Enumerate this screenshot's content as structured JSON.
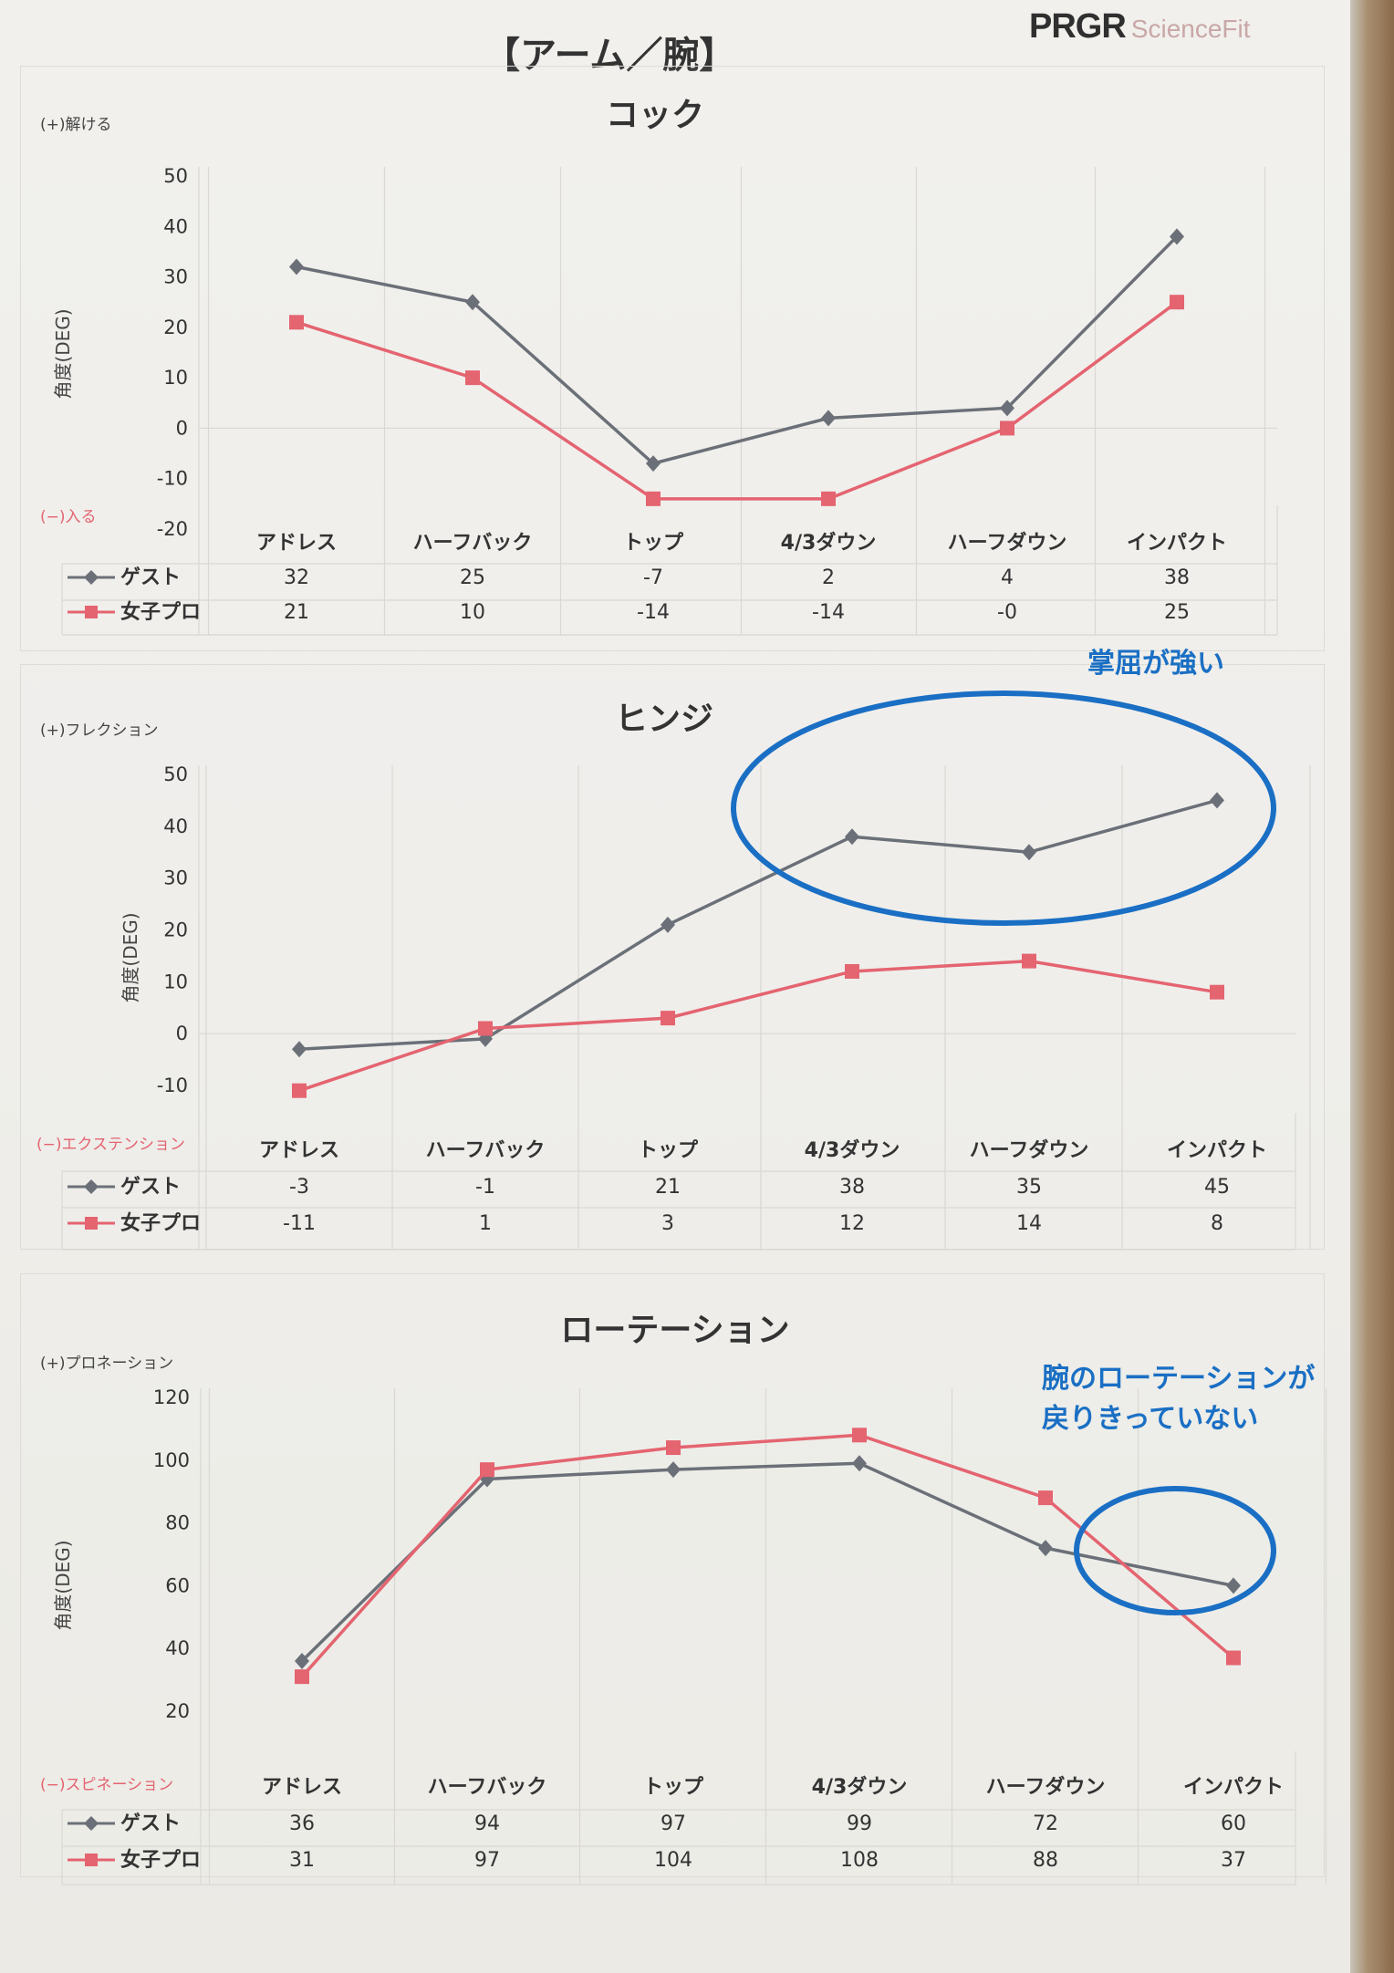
{
  "page_title": "【アーム／腕】",
  "brand": {
    "name": "PRGR",
    "sub": "ScienceFit"
  },
  "colors": {
    "guest": "#6b7078",
    "pro": "#e46470",
    "annotation": "#1a6fc4",
    "grid": "#d9d8d3"
  },
  "chart_data": [
    {
      "type": "line",
      "title": "コック",
      "ylabel": "角度(DEG)",
      "pos_label": "(+)解ける",
      "neg_label": "(−)入る",
      "ylim": [
        -20,
        50
      ],
      "yticks": [
        50,
        40,
        30,
        20,
        10,
        0,
        -10,
        -20
      ],
      "categories": [
        "アドレス",
        "ハーフバック",
        "トップ",
        "4/3ダウン",
        "ハーフダウン",
        "インパクト"
      ],
      "series": [
        {
          "name": "ゲスト",
          "marker": "diamond",
          "values": [
            32,
            25,
            -7,
            2,
            4,
            38
          ]
        },
        {
          "name": "女子プロ",
          "marker": "square",
          "values": [
            21,
            10,
            -14,
            -14,
            0,
            25
          ]
        }
      ],
      "labels": {
        "ゲスト": [
          "32",
          "25",
          "-7",
          "2",
          "4",
          "38"
        ],
        "女子プロ": [
          "21",
          "10",
          "-14",
          "-14",
          "-0",
          "25"
        ]
      }
    },
    {
      "type": "line",
      "title": "ヒンジ",
      "ylabel": "角度(DEG)",
      "pos_label": "(+)フレクション",
      "neg_label": "(−)エクステンション",
      "ylim": [
        -10,
        50
      ],
      "yticks": [
        50,
        40,
        30,
        20,
        10,
        0,
        -10
      ],
      "categories": [
        "アドレス",
        "ハーフバック",
        "トップ",
        "4/3ダウン",
        "ハーフダウン",
        "インパクト"
      ],
      "series": [
        {
          "name": "ゲスト",
          "marker": "diamond",
          "values": [
            -3,
            -1,
            21,
            38,
            35,
            45
          ]
        },
        {
          "name": "女子プロ",
          "marker": "square",
          "values": [
            -11,
            1,
            3,
            12,
            14,
            8
          ]
        }
      ],
      "labels": {
        "ゲスト": [
          "-3",
          "-1",
          "21",
          "38",
          "35",
          "45"
        ],
        "女子プロ": [
          "-11",
          "1",
          "3",
          "12",
          "14",
          "8"
        ]
      }
    },
    {
      "type": "line",
      "title": "ローテーション",
      "ylabel": "角度(DEG)",
      "pos_label": "(+)プロネーション",
      "neg_label": "(−)スピネーション",
      "ylim": [
        20,
        120
      ],
      "yticks": [
        120,
        100,
        80,
        60,
        40,
        20
      ],
      "categories": [
        "アドレス",
        "ハーフバック",
        "トップ",
        "4/3ダウン",
        "ハーフダウン",
        "インパクト"
      ],
      "series": [
        {
          "name": "ゲスト",
          "marker": "diamond",
          "values": [
            36,
            94,
            97,
            99,
            72,
            60
          ]
        },
        {
          "name": "女子プロ",
          "marker": "square",
          "values": [
            31,
            97,
            104,
            108,
            88,
            37
          ]
        }
      ],
      "labels": {
        "ゲスト": [
          "36",
          "94",
          "97",
          "99",
          "72",
          "60"
        ],
        "女子プロ": [
          "31",
          "97",
          "104",
          "108",
          "88",
          "37"
        ]
      }
    }
  ],
  "annotations": [
    {
      "text": "掌屈が強い"
    },
    {
      "line1": "腕のローテーションが",
      "line2": "戻りきっていない"
    }
  ]
}
